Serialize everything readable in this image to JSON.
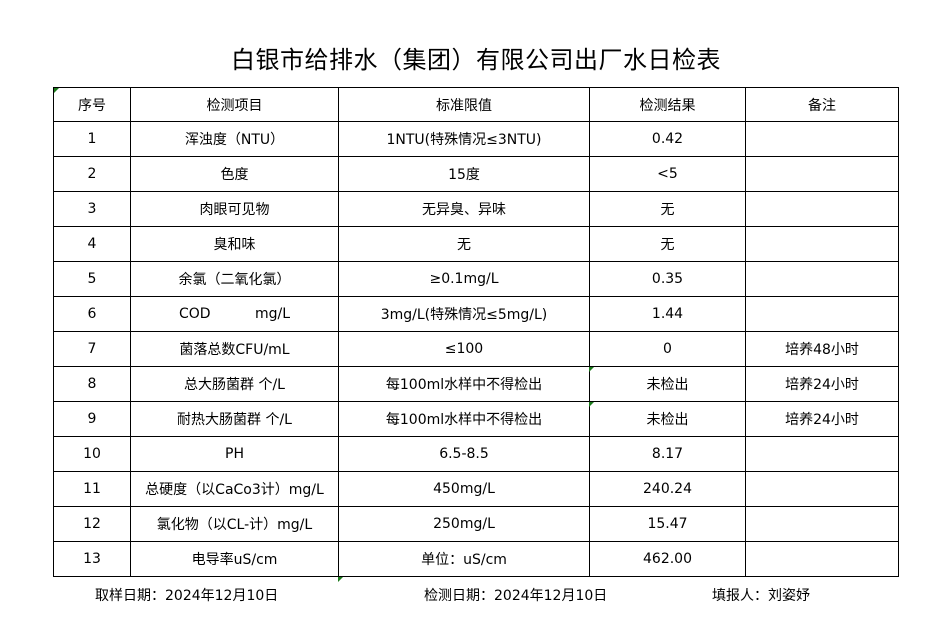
{
  "title": "白银市给排水（集团）有限公司出厂水日检表",
  "headers": [
    "序号",
    "检测项目",
    "标准限值",
    "检测结果",
    "备注"
  ],
  "rows": [
    [
      "1",
      "浑浊度（NTU）",
      "1NTU(特殊情况≤3NTU)",
      "0.42",
      ""
    ],
    [
      "2",
      "色度",
      "15度",
      "<5",
      ""
    ],
    [
      "3",
      "肉眼可见物",
      "无异臭、异味",
      "无",
      ""
    ],
    [
      "4",
      "臭和味",
      "无",
      "无",
      ""
    ],
    [
      "5",
      "余氯（二氧化氯）",
      "≥0.1mg/L",
      "0.35",
      ""
    ],
    [
      "6",
      "COD          mg/L",
      "3mg/L(特殊情况≤5mg/L)",
      "1.44",
      ""
    ],
    [
      "7",
      "菌落总数CFU/mL",
      "≤100",
      "0",
      "培养48小时"
    ],
    [
      "8",
      "总大肠菌群 个/L",
      "每100ml水样中不得检出",
      "未检出",
      "培养24小时"
    ],
    [
      "9",
      "耐热大肠菌群 个/L",
      "每100ml水样中不得检出",
      "未检出",
      "培养24小时"
    ],
    [
      "10",
      "PH",
      "6.5-8.5",
      "8.17",
      ""
    ],
    [
      "11",
      "总硬度（以CaCo3计）mg/L",
      "450mg/L",
      "240.24",
      ""
    ],
    [
      "12",
      "氯化物（以CL-计）mg/L",
      "250mg/L",
      "15.47",
      ""
    ],
    [
      "13",
      "电导率uS/cm",
      "单位：uS/cm",
      "462.00",
      ""
    ]
  ],
  "footer": {
    "sample_date": "取样日期：2024年12月10日",
    "test_date": "检测日期：2024年12月10日",
    "reporter": "填报人：刘姿妤"
  }
}
